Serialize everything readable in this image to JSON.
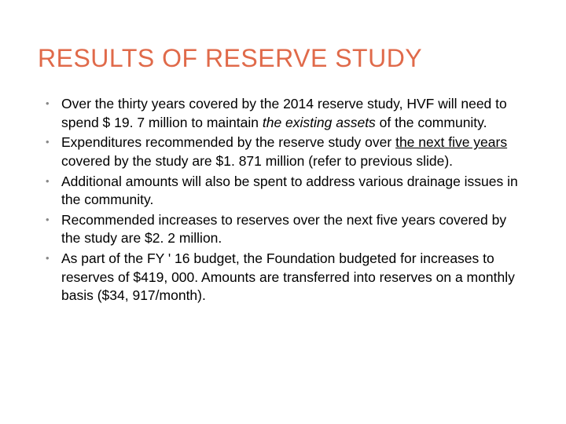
{
  "slide": {
    "title": "RESULTS OF RESERVE STUDY",
    "title_color": "#e06a4a",
    "title_fontsize": 32,
    "background_color": "#ffffff",
    "bullet_color": "#888888",
    "body_color": "#000000",
    "body_fontsize": 17.5,
    "bullets": [
      {
        "pre": "Over the thirty years covered by the 2014 reserve study, HVF will need to spend $ 19. 7 million to maintain ",
        "italic": "the existing assets",
        "post": " of the community."
      },
      {
        "pre": "Expenditures recommended by the reserve study over ",
        "underline": "the next five years",
        "post": " covered by the study are $1. 871 million (refer to previous slide)."
      },
      {
        "pre": "Additional amounts will also be spent to address various drainage issues in the community.",
        "post": ""
      },
      {
        "pre": "Recommended increases to reserves over the next five years covered by the study are $2. 2 million.",
        "post": ""
      },
      {
        "pre": "As part of the FY ' 16 budget, the Foundation budgeted for increases to reserves of $419, 000.   Amounts are transferred into reserves on a monthly basis ($34, 917/month).",
        "post": ""
      }
    ]
  }
}
